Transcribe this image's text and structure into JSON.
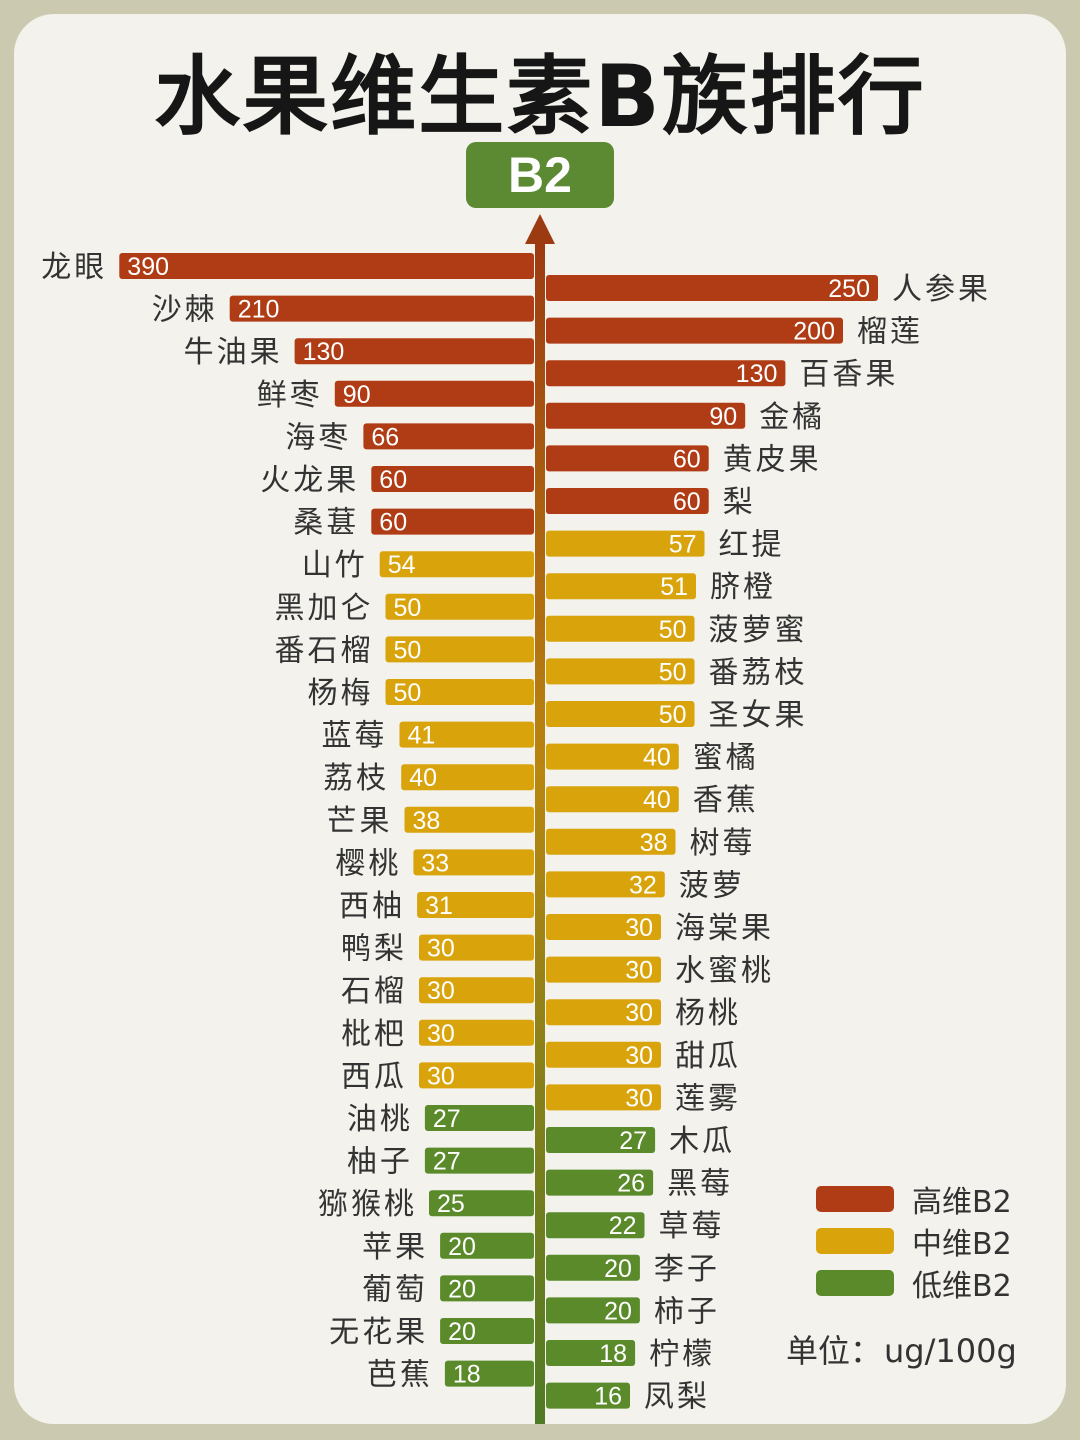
{
  "title": "水果维生素B族排行",
  "badge": "B2",
  "unit_label": "单位：",
  "unit_value": "ug/100g",
  "colors": {
    "high": "#b03c15",
    "mid": "#d9a30c",
    "low": "#5a8a2a",
    "axis_top": "#9c3a12",
    "axis_bottom": "#4f7a26",
    "text": "#333333"
  },
  "legend": [
    {
      "label": "高维B2",
      "color": "#b03c15"
    },
    {
      "label": "中维B2",
      "color": "#d9a30c"
    },
    {
      "label": "低维B2",
      "color": "#5a8a2a"
    }
  ],
  "chart_data": {
    "type": "bar",
    "orientation": "horizontal",
    "title": "水果维生素B族排行",
    "unit": "ug/100g",
    "legend_position": "bottom-right",
    "series": [
      {
        "side": "left",
        "categories": [
          "龙眼",
          "沙棘",
          "牛油果",
          "鲜枣",
          "海枣",
          "火龙果",
          "桑葚",
          "山竹",
          "黑加仑",
          "番石榴",
          "杨梅",
          "蓝莓",
          "荔枝",
          "芒果",
          "樱桃",
          "西柚",
          "鸭梨",
          "石榴",
          "枇杷",
          "西瓜",
          "油桃",
          "柚子",
          "猕猴桃",
          "苹果",
          "葡萄",
          "无花果",
          "芭蕉"
        ],
        "values": [
          390,
          210,
          130,
          90,
          66,
          60,
          60,
          54,
          50,
          50,
          50,
          41,
          40,
          38,
          33,
          31,
          30,
          30,
          30,
          30,
          27,
          27,
          25,
          20,
          20,
          20,
          18
        ],
        "levels": [
          "high",
          "high",
          "high",
          "high",
          "high",
          "high",
          "high",
          "mid",
          "mid",
          "mid",
          "mid",
          "mid",
          "mid",
          "mid",
          "mid",
          "mid",
          "mid",
          "mid",
          "mid",
          "mid",
          "low",
          "low",
          "low",
          "low",
          "low",
          "low",
          "low"
        ]
      },
      {
        "side": "right",
        "categories": [
          "人参果",
          "榴莲",
          "百香果",
          "金橘",
          "黄皮果",
          "梨",
          "红提",
          "脐橙",
          "菠萝蜜",
          "番荔枝",
          "圣女果",
          "蜜橘",
          "香蕉",
          "树莓",
          "菠萝",
          "海棠果",
          "水蜜桃",
          "杨桃",
          "甜瓜",
          "莲雾",
          "木瓜",
          "黑莓",
          "草莓",
          "李子",
          "柿子",
          "柠檬",
          "凤梨"
        ],
        "values": [
          250,
          200,
          130,
          90,
          60,
          60,
          57,
          51,
          50,
          50,
          50,
          40,
          40,
          38,
          32,
          30,
          30,
          30,
          30,
          30,
          27,
          26,
          22,
          20,
          20,
          18,
          16
        ],
        "levels": [
          "high",
          "high",
          "high",
          "high",
          "high",
          "high",
          "mid",
          "mid",
          "mid",
          "mid",
          "mid",
          "mid",
          "mid",
          "mid",
          "mid",
          "mid",
          "mid",
          "mid",
          "mid",
          "mid",
          "low",
          "low",
          "low",
          "low",
          "low",
          "low",
          "low"
        ]
      }
    ]
  }
}
